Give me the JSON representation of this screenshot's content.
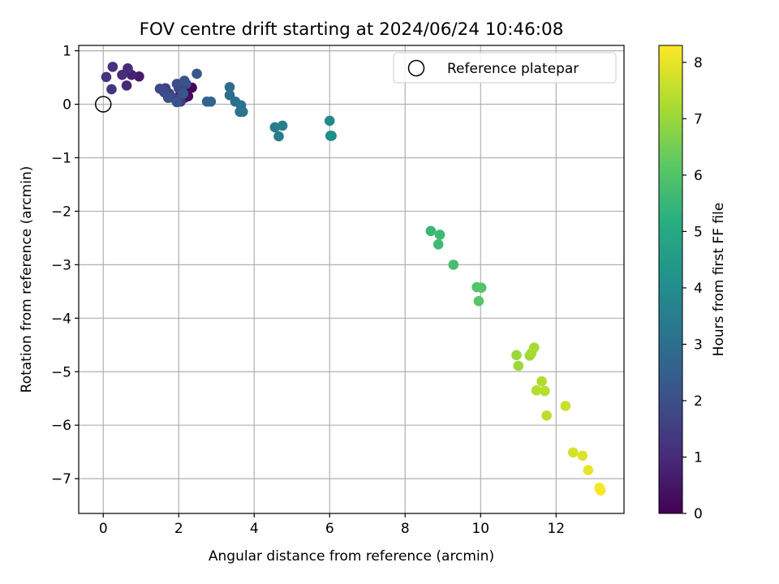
{
  "chart_data": {
    "type": "scatter",
    "title": "FOV centre drift starting at 2024/06/24 10:46:08",
    "xlabel": "Angular distance from reference (arcmin)",
    "ylabel": "Rotation from reference (arcmin)",
    "xlim": [
      -0.65,
      13.8
    ],
    "ylim": [
      -7.65,
      1.1
    ],
    "xticks": [
      0,
      2,
      4,
      6,
      8,
      10,
      12
    ],
    "yticks": [
      1,
      0,
      -1,
      -2,
      -3,
      -4,
      -5,
      -6,
      -7
    ],
    "xtick_labels": [
      "0",
      "2",
      "4",
      "6",
      "8",
      "10",
      "12"
    ],
    "ytick_labels": [
      "1",
      "0",
      "−1",
      "−2",
      "−3",
      "−4",
      "−5",
      "−6",
      "−7"
    ],
    "grid": true,
    "legend": {
      "position": "top-right",
      "label": "Reference platepar"
    },
    "reference_point": {
      "x": 0,
      "y": 0
    },
    "colorbar": {
      "label": "Hours from first FF file",
      "range": [
        0,
        8.3
      ],
      "ticks": [
        0,
        1,
        2,
        3,
        4,
        5,
        6,
        7,
        8
      ],
      "tick_labels": [
        "0",
        "1",
        "2",
        "3",
        "4",
        "5",
        "6",
        "7",
        "8"
      ],
      "colormap": "viridis"
    },
    "points": [
      {
        "x": 2.35,
        "y": 0.31,
        "c": 0.1
      },
      {
        "x": 2.2,
        "y": 0.22,
        "c": 0.2
      },
      {
        "x": 2.25,
        "y": 0.15,
        "c": 0.25
      },
      {
        "x": 2.05,
        "y": 0.22,
        "c": 0.3
      },
      {
        "x": 2.15,
        "y": 0.12,
        "c": 0.4
      },
      {
        "x": 0.95,
        "y": 0.52,
        "c": 0.6
      },
      {
        "x": 0.75,
        "y": 0.55,
        "c": 0.8
      },
      {
        "x": 0.62,
        "y": 0.35,
        "c": 0.9
      },
      {
        "x": 0.65,
        "y": 0.67,
        "c": 1.0
      },
      {
        "x": 0.5,
        "y": 0.55,
        "c": 1.1
      },
      {
        "x": 0.25,
        "y": 0.7,
        "c": 1.15
      },
      {
        "x": 0.08,
        "y": 0.51,
        "c": 1.2
      },
      {
        "x": 0.22,
        "y": 0.28,
        "c": 1.3
      },
      {
        "x": 2.05,
        "y": 0.05,
        "c": 1.45
      },
      {
        "x": 1.95,
        "y": 0.1,
        "c": 1.5
      },
      {
        "x": 1.75,
        "y": 0.2,
        "c": 1.55
      },
      {
        "x": 1.65,
        "y": 0.3,
        "c": 1.6
      },
      {
        "x": 1.85,
        "y": 0.12,
        "c": 1.65
      },
      {
        "x": 2.0,
        "y": 0.3,
        "c": 1.7
      },
      {
        "x": 2.1,
        "y": 0.35,
        "c": 1.75
      },
      {
        "x": 1.5,
        "y": 0.29,
        "c": 1.8
      },
      {
        "x": 1.62,
        "y": 0.22,
        "c": 1.85
      },
      {
        "x": 1.95,
        "y": 0.38,
        "c": 1.9
      },
      {
        "x": 2.2,
        "y": 0.38,
        "c": 1.95
      },
      {
        "x": 1.72,
        "y": 0.12,
        "c": 2.0
      },
      {
        "x": 1.95,
        "y": 0.04,
        "c": 2.05
      },
      {
        "x": 2.15,
        "y": 0.44,
        "c": 2.1
      },
      {
        "x": 2.12,
        "y": 0.2,
        "c": 2.2
      },
      {
        "x": 2.48,
        "y": 0.57,
        "c": 2.3
      },
      {
        "x": 2.75,
        "y": 0.05,
        "c": 2.6
      },
      {
        "x": 2.85,
        "y": 0.05,
        "c": 2.7
      },
      {
        "x": 3.35,
        "y": 0.32,
        "c": 2.95
      },
      {
        "x": 3.35,
        "y": 0.17,
        "c": 3.0
      },
      {
        "x": 3.5,
        "y": 0.05,
        "c": 3.05
      },
      {
        "x": 3.65,
        "y": -0.02,
        "c": 3.1
      },
      {
        "x": 3.7,
        "y": -0.14,
        "c": 3.15
      },
      {
        "x": 3.62,
        "y": -0.14,
        "c": 3.2
      },
      {
        "x": 4.55,
        "y": -0.43,
        "c": 3.4
      },
      {
        "x": 4.65,
        "y": -0.6,
        "c": 3.45
      },
      {
        "x": 4.75,
        "y": -0.4,
        "c": 3.5
      },
      {
        "x": 6.0,
        "y": -0.31,
        "c": 3.9
      },
      {
        "x": 6.05,
        "y": -0.59,
        "c": 3.95
      },
      {
        "x": 6.02,
        "y": -0.59,
        "c": 4.0
      },
      {
        "x": 8.68,
        "y": -2.37,
        "c": 5.5
      },
      {
        "x": 8.92,
        "y": -2.44,
        "c": 5.6
      },
      {
        "x": 8.88,
        "y": -2.62,
        "c": 5.65
      },
      {
        "x": 9.28,
        "y": -3.0,
        "c": 5.8
      },
      {
        "x": 9.9,
        "y": -3.42,
        "c": 6.0
      },
      {
        "x": 10.02,
        "y": -3.43,
        "c": 6.05
      },
      {
        "x": 9.95,
        "y": -3.68,
        "c": 6.1
      },
      {
        "x": 10.95,
        "y": -4.69,
        "c": 7.0
      },
      {
        "x": 11.0,
        "y": -4.89,
        "c": 7.05
      },
      {
        "x": 11.3,
        "y": -4.7,
        "c": 7.1
      },
      {
        "x": 11.35,
        "y": -4.65,
        "c": 7.15
      },
      {
        "x": 11.42,
        "y": -4.55,
        "c": 7.2
      },
      {
        "x": 11.62,
        "y": -5.18,
        "c": 7.3
      },
      {
        "x": 11.48,
        "y": -5.35,
        "c": 7.35
      },
      {
        "x": 11.7,
        "y": -5.36,
        "c": 7.4
      },
      {
        "x": 11.75,
        "y": -5.82,
        "c": 7.45
      },
      {
        "x": 12.25,
        "y": -5.64,
        "c": 7.6
      },
      {
        "x": 12.45,
        "y": -6.51,
        "c": 7.8
      },
      {
        "x": 12.7,
        "y": -6.57,
        "c": 7.9
      },
      {
        "x": 12.85,
        "y": -6.84,
        "c": 8.0
      },
      {
        "x": 13.15,
        "y": -7.17,
        "c": 8.2
      },
      {
        "x": 13.18,
        "y": -7.22,
        "c": 8.25
      }
    ]
  }
}
